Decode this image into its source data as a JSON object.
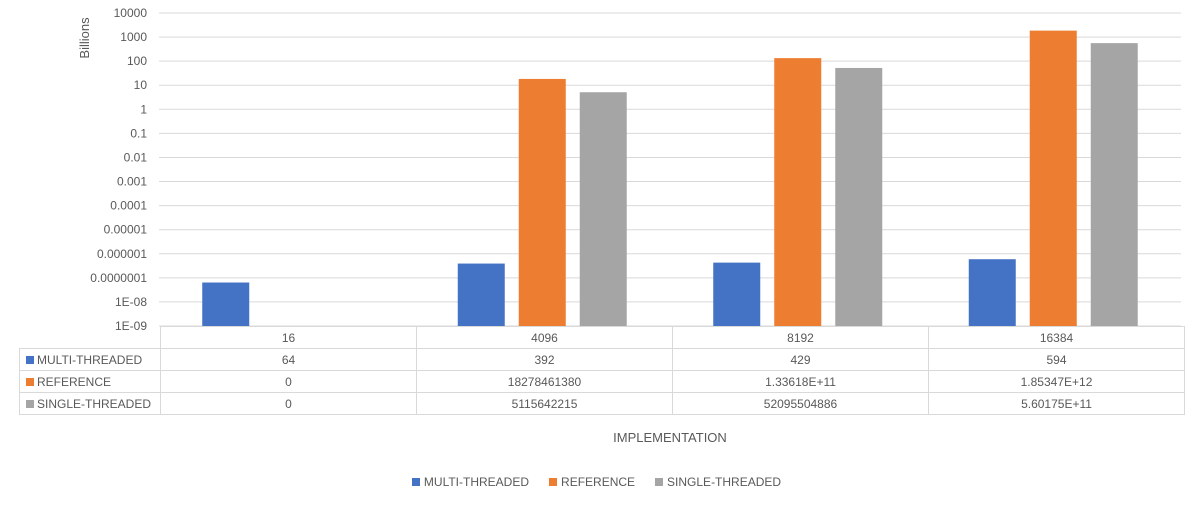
{
  "chart_data": {
    "type": "bar",
    "y_scale": "log",
    "ylabel": "Billions",
    "xlabel": "IMPLEMENTATION",
    "y_ticks": [
      "10000",
      "1000",
      "100",
      "10",
      "1",
      "0.1",
      "0.01",
      "0.001",
      "0.0001",
      "0.00001",
      "0.000001",
      "0.0000001",
      "1E-08",
      "1E-09"
    ],
    "ylim_exponents": [
      -9,
      4
    ],
    "categories": [
      "16",
      "4096",
      "8192",
      "16384"
    ],
    "series": [
      {
        "name": "MULTI-THREADED",
        "color": "#4472c4",
        "display_values": [
          "64",
          "392",
          "429",
          "594"
        ],
        "values": [
          64,
          392,
          429,
          594
        ]
      },
      {
        "name": "REFERENCE",
        "color": "#ed7d31",
        "display_values": [
          "0",
          "18278461380",
          "1.33618E+11",
          "1.85347E+12"
        ],
        "values": [
          0,
          18278461380,
          133618000000,
          1853470000000
        ]
      },
      {
        "name": "SINGLE-THREADED",
        "color": "#a5a5a5",
        "display_values": [
          "0",
          "5115642215",
          "52095504886",
          "5.60175E+11"
        ],
        "values": [
          0,
          5115642215,
          52095504886,
          560175000000
        ]
      }
    ],
    "legend_position": "bottom",
    "grid": true
  }
}
